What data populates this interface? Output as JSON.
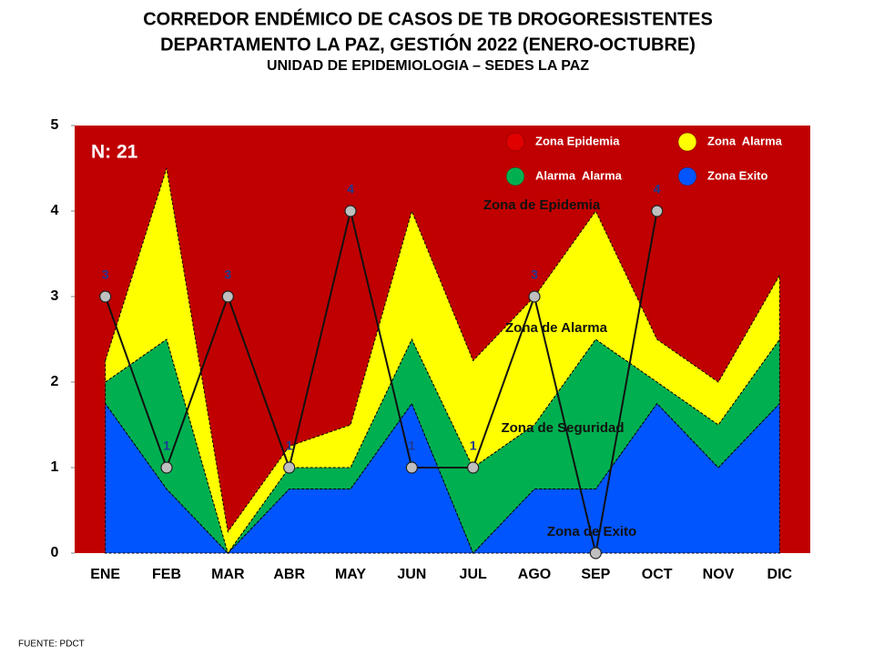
{
  "chart_data": {
    "type": "corridor",
    "title": "CORREDOR ENDÉMICO DE CASOS DE TB DROGORESISTENTES",
    "subtitle": "DEPARTAMENTO  LA PAZ, GESTIÓN 2022 (ENERO-OCTUBRE)",
    "subtitle2": "UNIDAD DE EPIDEMIOLOGIA – SEDES LA PAZ",
    "annotation": "N: 21",
    "source": "FUENTE:   PDCT",
    "epidemic_label": "Zona de Epidemia",
    "background_color": "#c00000",
    "categories": [
      "ENE",
      "FEB",
      "MAR",
      "ABR",
      "MAY",
      "JUN",
      "JUL",
      "AGO",
      "SEP",
      "OCT",
      "NOV",
      "DIC"
    ],
    "ylim": [
      0,
      5
    ],
    "yticks": [
      0,
      1,
      2,
      3,
      4,
      5
    ],
    "series": [
      {
        "name": "Zona de Exito",
        "color": "#0055ff",
        "values": [
          1.75,
          0.75,
          0,
          0.75,
          0.75,
          1.75,
          0,
          0.75,
          0.75,
          1.75,
          1,
          1.75
        ]
      },
      {
        "name": "Zona de Seguridad",
        "color": "#00b050",
        "values": [
          2,
          2.5,
          0,
          1,
          1,
          2.5,
          1,
          1.5,
          2.5,
          2,
          1.5,
          2.5
        ]
      },
      {
        "name": "Zona de Alarma",
        "color": "#ffff00",
        "values": [
          2.25,
          4.5,
          0.25,
          1.25,
          1.5,
          4,
          2.25,
          3,
          4,
          2.5,
          2,
          3.25
        ]
      }
    ],
    "cases": {
      "color": "#bfbfbf",
      "values": [
        3,
        1,
        3,
        1,
        4,
        1,
        1,
        3,
        0,
        4,
        null,
        null
      ],
      "value_labels": [
        "3",
        "1",
        "3",
        "1",
        "4",
        "1",
        "1",
        "3",
        null,
        "4",
        null,
        null
      ]
    },
    "legend": [
      {
        "name": "Zona Epidemia",
        "color": "#e00000"
      },
      {
        "name": "Zona  Alarma",
        "color": "#ffff00"
      },
      {
        "name": "Alarma  Alarma",
        "color": "#00b050"
      },
      {
        "name": "Zona Exito",
        "color": "#0055ff"
      }
    ]
  }
}
